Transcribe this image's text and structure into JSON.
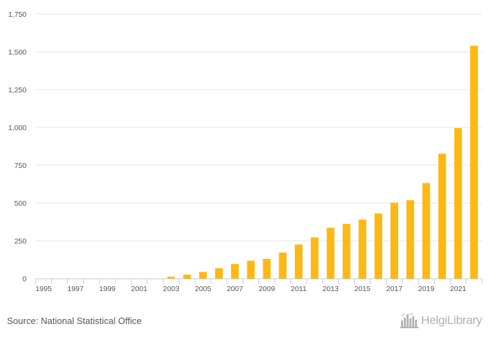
{
  "chart_data": {
    "type": "bar",
    "title": "",
    "xlabel": "",
    "ylabel": "",
    "ylim": [
      0,
      1750
    ],
    "yticks": [
      0,
      250,
      500,
      750,
      1000,
      1250,
      1500,
      1750
    ],
    "ytick_labels": [
      "0",
      "250",
      "500",
      "750",
      "1,000",
      "1,250",
      "1,500",
      "1,750"
    ],
    "categories": [
      "1995",
      "1996",
      "1997",
      "1998",
      "1999",
      "2000",
      "2001",
      "2002",
      "2003",
      "2004",
      "2005",
      "2006",
      "2007",
      "2008",
      "2009",
      "2010",
      "2011",
      "2012",
      "2013",
      "2014",
      "2015",
      "2016",
      "2017",
      "2018",
      "2019",
      "2020",
      "2021",
      "2022"
    ],
    "xtick_labels": [
      "1995",
      "1997",
      "1999",
      "2001",
      "2003",
      "2005",
      "2007",
      "2009",
      "2011",
      "2013",
      "2015",
      "2017",
      "2019",
      "2021"
    ],
    "values": [
      0,
      0,
      0,
      0,
      0,
      0,
      0,
      0,
      12,
      26,
      44,
      68,
      96,
      118,
      130,
      172,
      225,
      272,
      336,
      362,
      390,
      430,
      502,
      518,
      632,
      826,
      995,
      1540
    ],
    "bar_color": "#FDB813",
    "grid": true
  },
  "footer": {
    "source": "Source: National Statistical Office",
    "brand": "HelgiLibrary"
  },
  "colors": {
    "grid": "#e6e6e6",
    "axis": "#cccccc",
    "tick_text": "#555555",
    "brand": "#b0b0b0"
  },
  "icons": {
    "brand_logo": "city-skyline-icon"
  }
}
